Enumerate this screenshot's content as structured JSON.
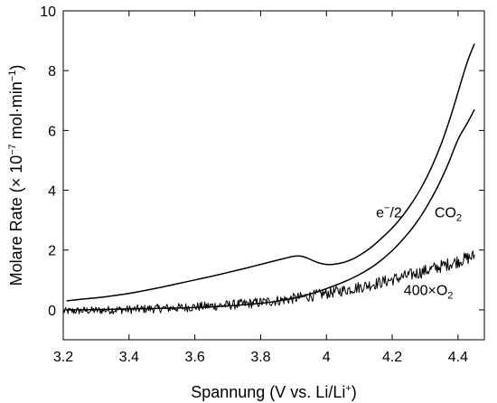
{
  "chart_data": {
    "type": "line",
    "xlabel": "Spannung (V vs. Li/Li",
    "xlabel_sup": "+",
    "xlabel_end": ")",
    "ylabel": "Molare Rate (× 10",
    "ylabel_sup1": "−7",
    "ylabel_mid": " mol·min",
    "ylabel_sup2": "−1",
    "ylabel_end": ")",
    "xlim": [
      3.2,
      4.48
    ],
    "ylim": [
      -1,
      10
    ],
    "x_ticks": [
      3.2,
      3.4,
      3.6,
      3.8,
      4.0,
      4.2,
      4.4
    ],
    "x_tick_labels": [
      "3.2",
      "3.4",
      "3.6",
      "3.8",
      "4",
      "4.2",
      "4.4"
    ],
    "y_ticks": [
      0,
      2,
      4,
      6,
      8,
      10
    ],
    "y_tick_labels": [
      "0",
      "2",
      "4",
      "6",
      "8",
      "10"
    ],
    "grid": false,
    "annotations": [
      {
        "text": "e",
        "sup": "−",
        "rest": "/2",
        "x": 4.19,
        "y": 3.1
      },
      {
        "text": "CO",
        "sub": "2",
        "rest": "",
        "x": 4.37,
        "y": 3.1
      },
      {
        "text": "400×O",
        "sub": "2",
        "rest": "",
        "x": 4.31,
        "y": 0.5
      }
    ],
    "series": [
      {
        "id": "e-over-2",
        "x": [
          3.21,
          3.25,
          3.3,
          3.35,
          3.4,
          3.45,
          3.5,
          3.55,
          3.6,
          3.65,
          3.7,
          3.75,
          3.8,
          3.85,
          3.88,
          3.9,
          3.92,
          3.94,
          3.96,
          3.98,
          4.0,
          4.02,
          4.05,
          4.08,
          4.1,
          4.13,
          4.16,
          4.2,
          4.23,
          4.26,
          4.29,
          4.32,
          4.35,
          4.38,
          4.41,
          4.43,
          4.45
        ],
        "y": [
          0.3,
          0.35,
          0.4,
          0.47,
          0.55,
          0.65,
          0.76,
          0.88,
          1.0,
          1.12,
          1.25,
          1.38,
          1.52,
          1.66,
          1.74,
          1.79,
          1.8,
          1.74,
          1.64,
          1.56,
          1.52,
          1.52,
          1.58,
          1.7,
          1.82,
          2.04,
          2.32,
          2.74,
          3.12,
          3.58,
          4.12,
          4.78,
          5.58,
          6.55,
          7.65,
          8.35,
          8.9
        ]
      },
      {
        "id": "co2",
        "x": [
          3.21,
          3.25,
          3.3,
          3.35,
          3.4,
          3.45,
          3.5,
          3.55,
          3.6,
          3.65,
          3.7,
          3.75,
          3.8,
          3.85,
          3.9,
          3.95,
          4.0,
          4.05,
          4.1,
          4.15,
          4.2,
          4.25,
          4.28,
          4.31,
          4.34,
          4.37,
          4.4,
          4.43,
          4.45
        ],
        "y": [
          0.0,
          0.0,
          0.01,
          0.02,
          0.03,
          0.04,
          0.05,
          0.06,
          0.08,
          0.1,
          0.13,
          0.17,
          0.22,
          0.29,
          0.39,
          0.53,
          0.71,
          0.92,
          1.18,
          1.52,
          1.98,
          2.58,
          3.02,
          3.55,
          4.16,
          4.88,
          5.7,
          6.28,
          6.7
        ]
      },
      {
        "id": "400xO2",
        "x": [
          3.2,
          3.25,
          3.3,
          3.35,
          3.4,
          3.45,
          3.5,
          3.55,
          3.6,
          3.65,
          3.7,
          3.75,
          3.8,
          3.85,
          3.9,
          3.95,
          4.0,
          4.05,
          4.1,
          4.15,
          4.2,
          4.25,
          4.3,
          4.35,
          4.4,
          4.45
        ],
        "y": [
          -0.05,
          -0.03,
          -0.02,
          0.0,
          0.01,
          0.03,
          0.05,
          0.07,
          0.1,
          0.13,
          0.16,
          0.2,
          0.25,
          0.31,
          0.38,
          0.46,
          0.55,
          0.65,
          0.76,
          0.88,
          1.01,
          1.15,
          1.3,
          1.46,
          1.63,
          1.8
        ],
        "noise": 0.16
      }
    ]
  }
}
